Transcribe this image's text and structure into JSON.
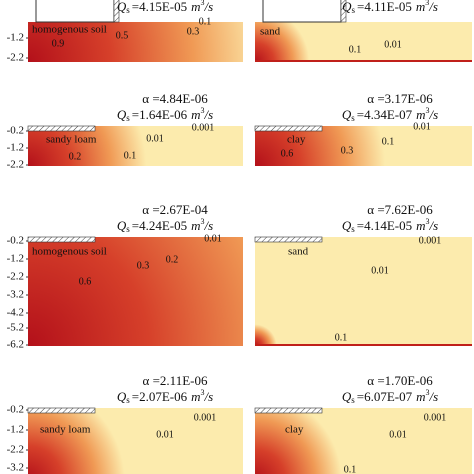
{
  "figure": {
    "q_symbol": "Q",
    "q_subscript": "s",
    "unit_base": "m",
    "unit_exponent": "3",
    "unit_suffix": "/s",
    "panels": [
      {
        "qs_value": "=4.15E-05",
        "soil": "homogenous soil",
        "contours": [
          "0.9",
          "0.5",
          "0.3",
          "0.1"
        ],
        "yticks": [
          "-1.2",
          "-2.2"
        ]
      },
      {
        "qs_value": "=4.11E-05",
        "soil": "sand",
        "contours": [
          "0.1",
          "0.01"
        ]
      },
      {
        "alpha": "α =4.84E-06",
        "qs_value": "=1.64E-06",
        "soil": "sandy loam",
        "contours": [
          "0.2",
          "0.1",
          "0.01",
          "0.001"
        ],
        "yticks": [
          "-0.2",
          "-1.2",
          "-2.2"
        ]
      },
      {
        "alpha": "α =3.17E-06",
        "qs_value": "=4.34E-07",
        "soil": "clay",
        "contours": [
          "0.6",
          "0.3",
          "0.1",
          "0.01"
        ]
      },
      {
        "alpha": "α =2.67E-04",
        "qs_value": "=4.24E-05",
        "soil": "homogenous soil",
        "contours": [
          "0.01",
          "0.2",
          "0.3",
          "0.6"
        ],
        "yticks": [
          "-0.2",
          "-1.2",
          "-2.2",
          "-3.2",
          "-4.2",
          "-5.2",
          "-6.2"
        ]
      },
      {
        "alpha": "α =7.62E-06",
        "qs_value": "=4.14E-05",
        "soil": "sand",
        "contours": [
          "0.001",
          "0.01",
          "0.1"
        ]
      },
      {
        "alpha": "α =2.11E-06",
        "qs_value": "=2.07E-06",
        "soil": "sandy loam",
        "contours": [
          "0.01",
          "0.001"
        ],
        "yticks": [
          "-0.2",
          "-1.2",
          "-2.2",
          "-3.2"
        ]
      },
      {
        "alpha": "α =1.70E-06",
        "qs_value": "=6.07E-07",
        "soil": "clay",
        "contours": [
          "0.01",
          "0.001",
          "0.1"
        ]
      }
    ]
  }
}
